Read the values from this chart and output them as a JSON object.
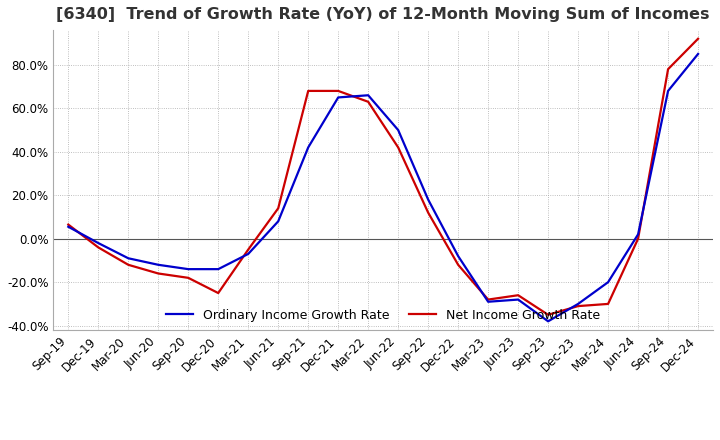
{
  "title": "[6340]  Trend of Growth Rate (YoY) of 12-Month Moving Sum of Incomes",
  "ylim": [
    -0.42,
    0.96
  ],
  "yticks": [
    -0.4,
    -0.2,
    0.0,
    0.2,
    0.4,
    0.6,
    0.8
  ],
  "x_labels": [
    "Sep-19",
    "Dec-19",
    "Mar-20",
    "Jun-20",
    "Sep-20",
    "Dec-20",
    "Mar-21",
    "Jun-21",
    "Sep-21",
    "Dec-21",
    "Mar-22",
    "Jun-22",
    "Sep-22",
    "Dec-22",
    "Mar-23",
    "Jun-23",
    "Sep-23",
    "Dec-23",
    "Mar-24",
    "Jun-24",
    "Sep-24",
    "Dec-24"
  ],
  "ordinary_income": [
    0.055,
    -0.02,
    -0.09,
    -0.12,
    -0.14,
    -0.14,
    -0.07,
    0.08,
    0.42,
    0.65,
    0.66,
    0.5,
    0.18,
    -0.08,
    -0.29,
    -0.28,
    -0.38,
    -0.3,
    -0.2,
    0.02,
    0.68,
    0.85
  ],
  "net_income": [
    0.065,
    -0.04,
    -0.12,
    -0.16,
    -0.18,
    -0.25,
    -0.05,
    0.14,
    0.68,
    0.68,
    0.63,
    0.42,
    0.12,
    -0.12,
    -0.28,
    -0.26,
    -0.35,
    -0.31,
    -0.3,
    0.0,
    0.78,
    0.92
  ],
  "ordinary_color": "#0000CC",
  "net_color": "#CC0000",
  "line_width": 1.6,
  "legend_labels": [
    "Ordinary Income Growth Rate",
    "Net Income Growth Rate"
  ],
  "background_color": "#FFFFFF",
  "grid_color": "#AAAAAA",
  "title_fontsize": 11.5,
  "tick_fontsize": 8.5
}
